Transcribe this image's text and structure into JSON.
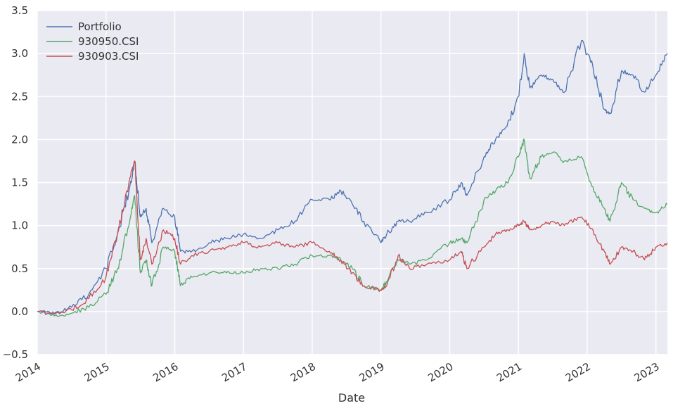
{
  "chart_data": {
    "type": "line",
    "xlabel": "Date",
    "ylabel": "",
    "title": "",
    "x_ticks": [
      "2014",
      "2015",
      "2016",
      "2017",
      "2018",
      "2019",
      "2020",
      "2021",
      "2022",
      "2023"
    ],
    "y_ticks": [
      "−0.5",
      "0.0",
      "0.5",
      "1.0",
      "1.5",
      "2.0",
      "2.5",
      "3.0",
      "3.5"
    ],
    "xlim": [
      "2014-01",
      "2023-03"
    ],
    "ylim": [
      -0.5,
      3.5
    ],
    "grid": true,
    "legend_position": "top-left",
    "x": [
      "2014-01",
      "2014-04",
      "2014-07",
      "2014-10",
      "2015-01",
      "2015-03",
      "2015-05",
      "2015-06",
      "2015-07",
      "2015-08",
      "2015-09",
      "2015-11",
      "2016-01",
      "2016-02",
      "2016-04",
      "2016-07",
      "2016-10",
      "2017-01",
      "2017-04",
      "2017-07",
      "2017-10",
      "2018-01",
      "2018-04",
      "2018-06",
      "2018-08",
      "2018-10",
      "2019-01",
      "2019-02",
      "2019-04",
      "2019-06",
      "2019-09",
      "2020-01",
      "2020-03",
      "2020-04",
      "2020-07",
      "2020-09",
      "2020-11",
      "2021-01",
      "2021-02",
      "2021-03",
      "2021-05",
      "2021-07",
      "2021-09",
      "2021-12",
      "2022-02",
      "2022-04",
      "2022-05",
      "2022-07",
      "2022-09",
      "2022-11",
      "2023-01",
      "2023-03"
    ],
    "series": [
      {
        "name": "Portfolio",
        "color": "#4c72b0",
        "values": [
          0.0,
          -0.02,
          0.05,
          0.2,
          0.5,
          0.9,
          1.4,
          1.75,
          1.1,
          1.2,
          0.8,
          1.2,
          1.1,
          0.7,
          0.7,
          0.8,
          0.85,
          0.9,
          0.85,
          0.95,
          1.05,
          1.3,
          1.3,
          1.4,
          1.25,
          1.05,
          0.8,
          0.9,
          1.05,
          1.05,
          1.15,
          1.3,
          1.5,
          1.35,
          1.8,
          2.0,
          2.15,
          2.5,
          3.0,
          2.6,
          2.75,
          2.7,
          2.55,
          3.15,
          2.85,
          2.35,
          2.3,
          2.8,
          2.75,
          2.55,
          2.75,
          3.0
        ]
      },
      {
        "name": "930950.CSI",
        "color": "#55a868",
        "values": [
          0.0,
          -0.05,
          -0.02,
          0.05,
          0.2,
          0.5,
          1.0,
          1.35,
          0.45,
          0.6,
          0.3,
          0.75,
          0.7,
          0.3,
          0.4,
          0.45,
          0.45,
          0.45,
          0.5,
          0.5,
          0.55,
          0.65,
          0.65,
          0.6,
          0.5,
          0.3,
          0.25,
          0.35,
          0.6,
          0.55,
          0.6,
          0.8,
          0.85,
          0.8,
          1.3,
          1.4,
          1.5,
          1.8,
          2.0,
          1.55,
          1.8,
          1.85,
          1.75,
          1.8,
          1.45,
          1.2,
          1.05,
          1.5,
          1.3,
          1.2,
          1.15,
          1.25
        ]
      },
      {
        "name": "930903.CSI",
        "color": "#c44e52",
        "values": [
          0.0,
          -0.03,
          0.02,
          0.15,
          0.4,
          0.9,
          1.5,
          1.75,
          0.6,
          0.85,
          0.55,
          0.95,
          0.85,
          0.55,
          0.65,
          0.7,
          0.75,
          0.8,
          0.75,
          0.8,
          0.75,
          0.8,
          0.7,
          0.6,
          0.45,
          0.3,
          0.25,
          0.3,
          0.65,
          0.5,
          0.55,
          0.6,
          0.7,
          0.5,
          0.75,
          0.9,
          0.95,
          1.0,
          1.05,
          0.95,
          1.0,
          1.05,
          1.0,
          1.1,
          0.95,
          0.7,
          0.55,
          0.75,
          0.7,
          0.6,
          0.75,
          0.8
        ]
      }
    ]
  }
}
